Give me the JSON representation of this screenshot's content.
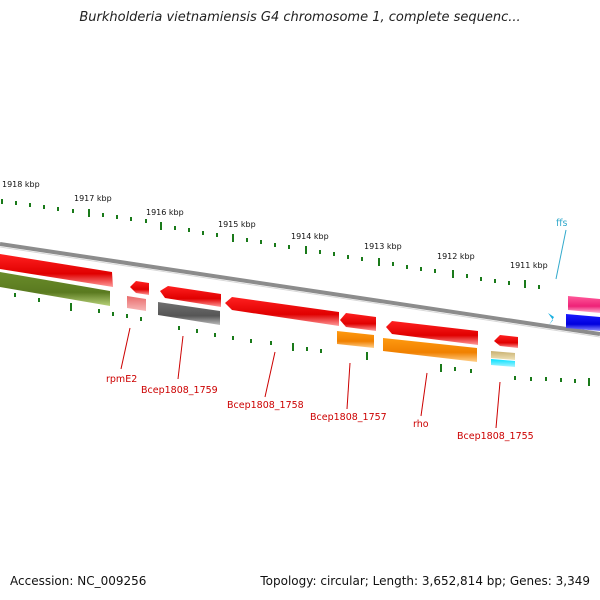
{
  "title": "Burkholderia vietnamiensis G4 chromosome 1, complete sequenc...",
  "footer": {
    "accession": "Accession: NC_009256",
    "summary": "Topology: circular; Length: 3,652,814 bp; Genes: 3,349"
  },
  "colors": {
    "backbone": "#8c8c8c",
    "tick": "#1a7a1a",
    "label_red": "#cc0000",
    "label_cyan": "#33aacc"
  },
  "scale_ticks": [
    "1918 kbp",
    "1917 kbp",
    "1916 kbp",
    "1915 kbp",
    "1914 kbp",
    "1913 kbp",
    "1912 kbp",
    "1911 kbp"
  ],
  "gene_labels": {
    "ffs": "ffs",
    "rpmE2": "rpmE2",
    "bcep1759": "Bcep1808_1759",
    "bcep1758": "Bcep1808_1758",
    "bcep1757": "Bcep1808_1757",
    "rho": "rho",
    "bcep1755": "Bcep1808_1755"
  }
}
